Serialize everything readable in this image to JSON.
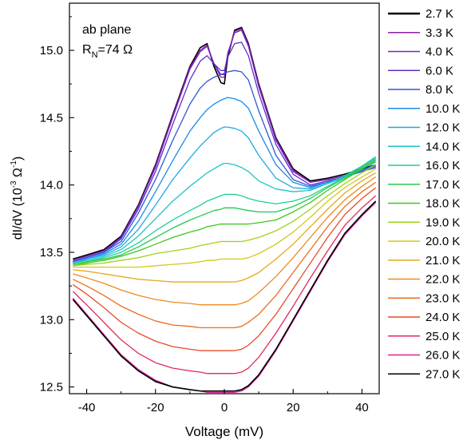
{
  "chart_data": {
    "type": "line",
    "xlabel": "Voltage (mV)",
    "ylabel_main": "dI/dV (10",
    "ylabel_exp1": "-3",
    "ylabel_mid": " Ω",
    "ylabel_exp2": "-1",
    "ylabel_end": ")",
    "xlim": [
      -45,
      45
    ],
    "ylim": [
      12.45,
      15.35
    ],
    "xticks": [
      -40,
      -20,
      0,
      20,
      40
    ],
    "xtick_labels": [
      "-40",
      "-20",
      "0",
      "20",
      "40"
    ],
    "yticks": [
      12.5,
      13.0,
      13.5,
      14.0,
      14.5,
      15.0
    ],
    "ytick_labels": [
      "12.5",
      "13.0",
      "13.5",
      "14.0",
      "14.5",
      "15.0"
    ],
    "annotation_line1": "ab plane",
    "annotation_rn_prefix": "R",
    "annotation_rn_sub": "N",
    "annotation_rn_value": "=74 Ω",
    "legend_position": "right",
    "x": [
      -44,
      -40,
      -35,
      -30,
      -25,
      -20,
      -15,
      -10,
      -7,
      -5,
      -3,
      -1,
      0,
      1,
      3,
      5,
      7,
      10,
      15,
      20,
      25,
      30,
      35,
      40,
      44
    ],
    "series": [
      {
        "name": "2.7 K",
        "color": "#000000",
        "values": [
          13.45,
          13.48,
          13.52,
          13.62,
          13.85,
          14.15,
          14.52,
          14.88,
          15.02,
          15.05,
          14.88,
          14.76,
          14.75,
          14.95,
          15.15,
          15.17,
          15.05,
          14.75,
          14.35,
          14.12,
          14.03,
          14.05,
          14.08,
          14.12,
          14.15
        ]
      },
      {
        "name": "3.3 K",
        "color": "#8b1fa8",
        "values": [
          13.44,
          13.47,
          13.51,
          13.61,
          13.84,
          14.14,
          14.51,
          14.87,
          15.0,
          15.04,
          14.9,
          14.8,
          14.8,
          14.97,
          15.14,
          15.16,
          15.04,
          14.74,
          14.34,
          14.11,
          14.02,
          14.04,
          14.07,
          14.11,
          14.14
        ]
      },
      {
        "name": "4.0 K",
        "color": "#7b22c4",
        "values": [
          13.44,
          13.47,
          13.51,
          13.61,
          13.84,
          14.13,
          14.5,
          14.86,
          14.99,
          15.03,
          14.9,
          14.82,
          14.82,
          14.98,
          15.13,
          15.15,
          15.03,
          14.73,
          14.33,
          14.1,
          14.02,
          14.04,
          14.07,
          14.11,
          14.14
        ]
      },
      {
        "name": "6.0 K",
        "color": "#5b2fc8",
        "values": [
          13.43,
          13.46,
          13.5,
          13.6,
          13.82,
          14.1,
          14.45,
          14.78,
          14.92,
          14.96,
          14.9,
          14.85,
          14.85,
          14.95,
          15.05,
          15.06,
          14.96,
          14.68,
          14.3,
          14.08,
          14.0,
          14.03,
          14.06,
          14.1,
          14.13
        ]
      },
      {
        "name": "8.0 K",
        "color": "#2e55d8",
        "values": [
          13.43,
          13.46,
          13.5,
          13.58,
          13.79,
          14.04,
          14.33,
          14.6,
          14.72,
          14.77,
          14.8,
          14.82,
          14.83,
          14.84,
          14.85,
          14.84,
          14.78,
          14.55,
          14.22,
          14.04,
          13.99,
          14.02,
          14.06,
          14.1,
          14.13
        ]
      },
      {
        "name": "10.0 K",
        "color": "#1a8be8",
        "values": [
          13.42,
          13.45,
          13.49,
          13.56,
          13.73,
          13.95,
          14.18,
          14.4,
          14.5,
          14.56,
          14.6,
          14.63,
          14.64,
          14.65,
          14.64,
          14.62,
          14.57,
          14.4,
          14.15,
          14.02,
          13.98,
          14.02,
          14.06,
          14.11,
          14.15
        ]
      },
      {
        "name": "12.0 K",
        "color": "#1ea8e6",
        "values": [
          13.42,
          13.45,
          13.48,
          13.54,
          13.67,
          13.85,
          14.04,
          14.2,
          14.29,
          14.34,
          14.39,
          14.42,
          14.43,
          14.43,
          14.42,
          14.4,
          14.35,
          14.22,
          14.05,
          13.98,
          13.97,
          14.01,
          14.06,
          14.12,
          14.17
        ]
      },
      {
        "name": "14.0 K",
        "color": "#1ec4c4",
        "values": [
          13.42,
          13.44,
          13.47,
          13.52,
          13.62,
          13.75,
          13.88,
          13.99,
          14.05,
          14.09,
          14.12,
          14.15,
          14.16,
          14.16,
          14.15,
          14.13,
          14.1,
          14.03,
          13.97,
          13.95,
          13.96,
          14.01,
          14.07,
          14.14,
          14.2
        ]
      },
      {
        "name": "16.0 K",
        "color": "#1ecf96",
        "values": [
          13.41,
          13.43,
          13.46,
          13.5,
          13.57,
          13.66,
          13.74,
          13.81,
          13.85,
          13.88,
          13.9,
          13.92,
          13.93,
          13.93,
          13.93,
          13.92,
          13.9,
          13.88,
          13.86,
          13.88,
          13.92,
          13.99,
          14.06,
          14.14,
          14.21
        ]
      },
      {
        "name": "17.0 K",
        "color": "#22c850",
        "values": [
          13.41,
          13.43,
          13.45,
          13.48,
          13.54,
          13.61,
          13.68,
          13.74,
          13.77,
          13.79,
          13.81,
          13.82,
          13.83,
          13.83,
          13.83,
          13.82,
          13.81,
          13.8,
          13.8,
          13.84,
          13.9,
          13.98,
          14.05,
          14.13,
          14.19
        ]
      },
      {
        "name": "18.0 K",
        "color": "#3cc81e",
        "values": [
          13.4,
          13.42,
          13.44,
          13.47,
          13.51,
          13.56,
          13.61,
          13.65,
          13.67,
          13.69,
          13.7,
          13.71,
          13.71,
          13.71,
          13.71,
          13.71,
          13.71,
          13.72,
          13.74,
          13.8,
          13.87,
          13.96,
          14.04,
          14.12,
          14.18
        ]
      },
      {
        "name": "19.0 K",
        "color": "#a0d21e",
        "values": [
          13.4,
          13.41,
          13.42,
          13.44,
          13.46,
          13.49,
          13.51,
          13.53,
          13.55,
          13.56,
          13.57,
          13.58,
          13.58,
          13.58,
          13.58,
          13.58,
          13.59,
          13.61,
          13.66,
          13.73,
          13.82,
          13.92,
          14.01,
          14.09,
          14.15
        ]
      },
      {
        "name": "20.0 K",
        "color": "#d2c81e",
        "values": [
          13.39,
          13.39,
          13.39,
          13.39,
          13.39,
          13.4,
          13.41,
          13.42,
          13.43,
          13.44,
          13.44,
          13.45,
          13.45,
          13.45,
          13.45,
          13.45,
          13.46,
          13.49,
          13.56,
          13.65,
          13.76,
          13.88,
          13.98,
          14.06,
          14.12
        ]
      },
      {
        "name": "21.0 K",
        "color": "#e6a81e",
        "values": [
          13.37,
          13.36,
          13.34,
          13.32,
          13.3,
          13.29,
          13.28,
          13.28,
          13.28,
          13.28,
          13.28,
          13.28,
          13.28,
          13.28,
          13.28,
          13.29,
          13.31,
          13.35,
          13.45,
          13.56,
          13.69,
          13.82,
          13.94,
          14.03,
          14.09
        ]
      },
      {
        "name": "22.0 K",
        "color": "#eb8c1e",
        "values": [
          13.34,
          13.31,
          13.27,
          13.22,
          13.18,
          13.15,
          13.13,
          13.12,
          13.11,
          13.11,
          13.11,
          13.11,
          13.11,
          13.11,
          13.11,
          13.12,
          13.14,
          13.2,
          13.32,
          13.46,
          13.61,
          13.76,
          13.89,
          13.99,
          14.06
        ]
      },
      {
        "name": "23.0 K",
        "color": "#eb6c1e",
        "values": [
          13.3,
          13.25,
          13.18,
          13.1,
          13.04,
          12.99,
          12.96,
          12.95,
          12.94,
          12.94,
          12.94,
          12.94,
          12.94,
          12.94,
          12.94,
          12.95,
          12.98,
          13.04,
          13.18,
          13.35,
          13.52,
          13.69,
          13.84,
          13.95,
          14.02
        ]
      },
      {
        "name": "24.0 K",
        "color": "#e84a28",
        "values": [
          13.26,
          13.19,
          13.09,
          12.98,
          12.9,
          12.84,
          12.8,
          12.78,
          12.77,
          12.77,
          12.77,
          12.77,
          12.77,
          12.77,
          12.77,
          12.78,
          12.81,
          12.88,
          13.04,
          13.23,
          13.42,
          13.61,
          13.78,
          13.9,
          13.98
        ]
      },
      {
        "name": "25.0 K",
        "color": "#e02a5a",
        "values": [
          13.21,
          13.11,
          12.98,
          12.85,
          12.75,
          12.68,
          12.64,
          12.62,
          12.61,
          12.6,
          12.6,
          12.6,
          12.6,
          12.6,
          12.6,
          12.61,
          12.64,
          12.72,
          12.9,
          13.1,
          13.31,
          13.51,
          13.7,
          13.83,
          13.92
        ]
      },
      {
        "name": "26.0 K",
        "color": "#e01e96",
        "values": [
          13.16,
          13.04,
          12.89,
          12.74,
          12.63,
          12.55,
          12.5,
          12.48,
          12.47,
          12.46,
          12.46,
          12.46,
          12.46,
          12.46,
          12.46,
          12.47,
          12.5,
          12.58,
          12.77,
          12.99,
          13.21,
          13.43,
          13.63,
          13.77,
          13.87
        ]
      },
      {
        "name": "27.0 K",
        "color": "#000000",
        "values": [
          13.15,
          13.03,
          12.88,
          12.73,
          12.62,
          12.54,
          12.5,
          12.48,
          12.47,
          12.47,
          12.47,
          12.47,
          12.47,
          12.47,
          12.47,
          12.48,
          12.51,
          12.59,
          12.78,
          13.0,
          13.22,
          13.44,
          13.64,
          13.78,
          13.88
        ]
      }
    ]
  }
}
